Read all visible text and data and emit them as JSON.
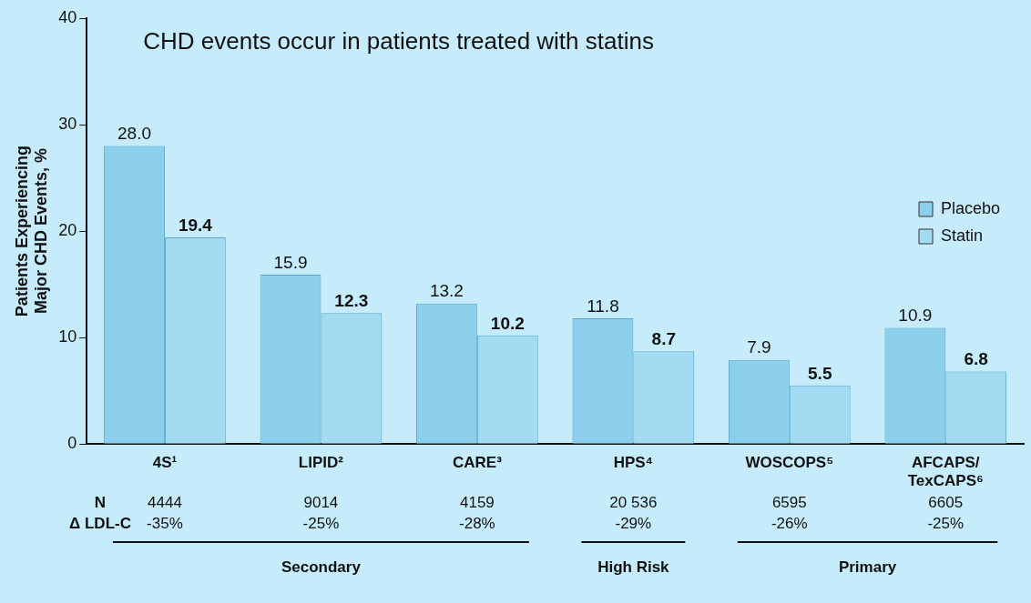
{
  "chart_data": {
    "type": "bar",
    "title": "CHD events occur in patients treated with statins",
    "ylabel": "Patients Experiencing Major CHD Events, %",
    "categories": [
      "4S¹",
      "LIPID²",
      "CARE³",
      "HPS⁴",
      "WOSCOPS⁵",
      "AFCAPS/TexCAPS⁶"
    ],
    "series": [
      {
        "name": "Placebo",
        "color": "#8ccfeb",
        "values": [
          28.0,
          15.9,
          13.2,
          11.8,
          7.9,
          10.9
        ],
        "value_labels": [
          "28.0",
          "15.9",
          "13.2",
          "11.8",
          "7.9",
          "10.9"
        ]
      },
      {
        "name": "Statin",
        "color": "#a3dbf2",
        "values": [
          19.4,
          12.3,
          10.2,
          8.7,
          5.5,
          6.8
        ],
        "value_labels": [
          "19.4",
          "12.3",
          "10.2",
          "8.7",
          "5.5",
          "6.8"
        ]
      }
    ],
    "ylim": [
      0,
      40
    ],
    "yticks": [
      0,
      10,
      20,
      30,
      40
    ],
    "grid": false,
    "legend": "right",
    "annotations": [
      "N",
      "4444",
      "9014",
      "4159",
      "20 536",
      "6595",
      "6605",
      "Δ LDL-C",
      "-35%",
      "-25%",
      "-28%",
      "-29%",
      "-26%",
      "-25%",
      "Secondary",
      "High Risk",
      "Primary"
    ]
  }
}
